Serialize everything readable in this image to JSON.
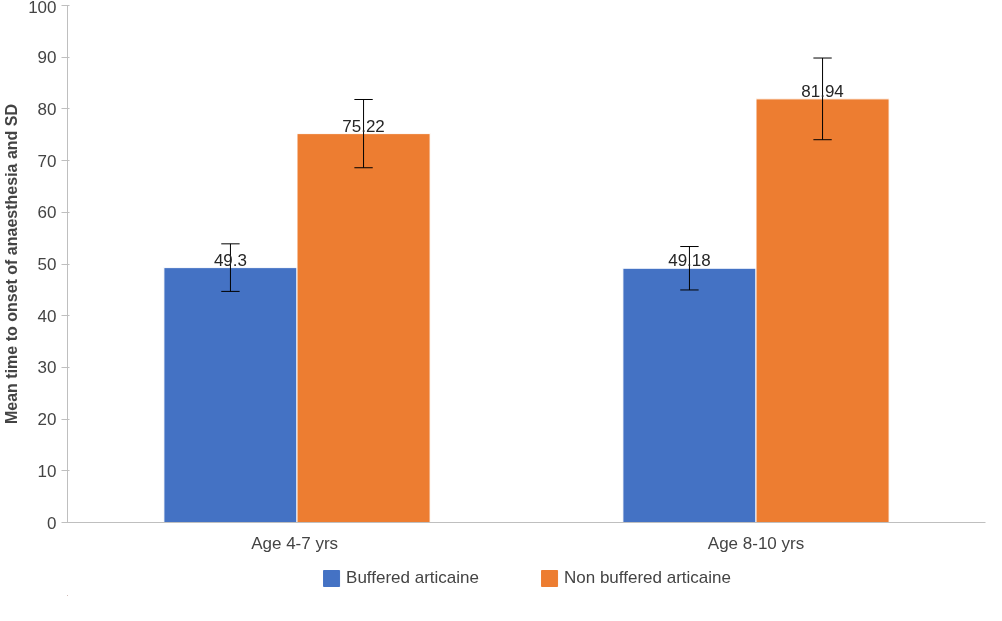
{
  "chart_data": {
    "type": "bar",
    "ylabel": "Mean time to onset of anaesthesia and SD",
    "categories": [
      "Age  4-7 yrs",
      "Age 8-10 yrs"
    ],
    "series": [
      {
        "name": "Buffered articaine",
        "color": "#4472c4",
        "values": [
          49.3,
          49.18
        ],
        "errors": [
          4.6,
          4.2
        ]
      },
      {
        "name": "Non buffered articaine",
        "color": "#ed7d31",
        "values": [
          75.22,
          81.94
        ],
        "errors": [
          6.6,
          7.9
        ]
      }
    ],
    "ylim": [
      0,
      100
    ],
    "yticks": [
      0,
      10,
      20,
      30,
      40,
      50,
      60,
      70,
      80,
      90,
      100
    ],
    "grid": false,
    "legend": "bottom",
    "data_labels": true
  }
}
